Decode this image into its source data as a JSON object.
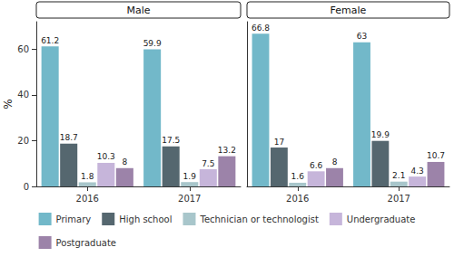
{
  "chart_data": [
    {
      "type": "bar",
      "title": "Male",
      "y_label": "%",
      "categories": [
        "2016",
        "2017"
      ],
      "series": [
        {
          "name": "Primary",
          "color": "#72b8c9",
          "values": [
            61.2,
            59.9
          ]
        },
        {
          "name": "High school",
          "color": "#55676f",
          "values": [
            18.7,
            17.5
          ]
        },
        {
          "name": "Technician or technologist",
          "color": "#a8c6cb",
          "values": [
            1.8,
            1.9
          ]
        },
        {
          "name": "Undergraduate",
          "color": "#c6b5da",
          "values": [
            10.3,
            7.5
          ]
        },
        {
          "name": "Postgraduate",
          "color": "#9c83a9",
          "values": [
            8,
            13.2
          ]
        }
      ],
      "ylim": [
        0,
        72
      ],
      "yticks": [
        0,
        20,
        40,
        60
      ],
      "grid": false,
      "data_labels": true,
      "legend": "bottom"
    },
    {
      "type": "bar",
      "title": "Female",
      "categories": [
        "2016",
        "2017"
      ],
      "series": [
        {
          "name": "Primary",
          "color": "#72b8c9",
          "values": [
            66.8,
            63
          ]
        },
        {
          "name": "High school",
          "color": "#55676f",
          "values": [
            17,
            19.9
          ]
        },
        {
          "name": "Technician or technologist",
          "color": "#a8c6cb",
          "values": [
            1.6,
            2.1
          ]
        },
        {
          "name": "Undergraduate",
          "color": "#c6b5da",
          "values": [
            6.6,
            4.3
          ]
        },
        {
          "name": "Postgraduate",
          "color": "#9c83a9",
          "values": [
            8,
            10.7
          ]
        }
      ],
      "ylim": [
        0,
        72
      ],
      "yticks": [
        0,
        20,
        40,
        60
      ],
      "grid": false,
      "data_labels": true,
      "tick_labels": "x"
    }
  ]
}
